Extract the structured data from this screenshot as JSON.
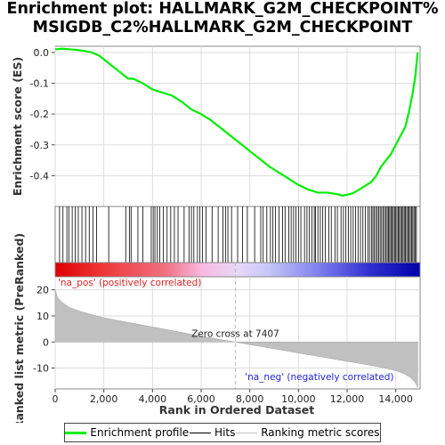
{
  "title_line1": "Enrichment plot: HALLMARK_G2M_CHECKPOINT%",
  "title_line2": "MSIGDB_C2%HALLMARK_G2M_CHECKPOINT",
  "colors": {
    "es_line": "#00ee00",
    "hit": "#000000",
    "metric_fill": "#c0c0c0",
    "pos_label": "#dd2222",
    "neg_label": "#2222dd",
    "grid": "#dddddd"
  },
  "legend": {
    "enrichment": "Enrichment profile",
    "hits": "Hits",
    "ranking": "Ranking metric scores"
  },
  "chart_data": [
    {
      "type": "line",
      "panel": "enrichment",
      "ylabel": "Enrichment score (ES)",
      "xlim": [
        0,
        15000
      ],
      "ylim": [
        -0.5,
        0.02
      ],
      "yticks": [
        "0.0",
        "-0.1",
        "-0.2",
        "-0.3",
        "-0.4"
      ],
      "ytick_values": [
        0.0,
        -0.1,
        -0.2,
        -0.3,
        -0.4
      ],
      "series": [
        {
          "name": "Enrichment profile",
          "x": [
            0,
            300,
            600,
            900,
            1200,
            1500,
            1800,
            2200,
            2600,
            3000,
            3200,
            3600,
            4000,
            4400,
            4800,
            5200,
            5600,
            6000,
            6400,
            6800,
            7200,
            7600,
            8000,
            8400,
            8800,
            9200,
            9600,
            10000,
            10400,
            10800,
            11200,
            11600,
            11800,
            12000,
            12200,
            12400,
            12600,
            12800,
            13000,
            13200,
            13400,
            13600,
            13800,
            14000,
            14200,
            14400,
            14550,
            14700,
            14800,
            14900
          ],
          "y": [
            0.01,
            0.012,
            0.01,
            0.008,
            0.005,
            0.0,
            -0.01,
            -0.035,
            -0.06,
            -0.085,
            -0.085,
            -0.1,
            -0.12,
            -0.13,
            -0.14,
            -0.16,
            -0.185,
            -0.2,
            -0.22,
            -0.245,
            -0.27,
            -0.295,
            -0.32,
            -0.345,
            -0.37,
            -0.39,
            -0.41,
            -0.43,
            -0.445,
            -0.455,
            -0.455,
            -0.46,
            -0.465,
            -0.462,
            -0.458,
            -0.45,
            -0.44,
            -0.43,
            -0.42,
            -0.4,
            -0.37,
            -0.35,
            -0.33,
            -0.3,
            -0.27,
            -0.24,
            -0.19,
            -0.13,
            -0.08,
            0.0
          ]
        }
      ]
    },
    {
      "type": "hits",
      "panel": "hits",
      "x": [
        180,
        320,
        480,
        560,
        700,
        820,
        950,
        1100,
        1250,
        1400,
        1550,
        1700,
        2200,
        2900,
        3050,
        3120,
        3400,
        3600,
        3950,
        4030,
        4100,
        4200,
        4300,
        4450,
        4600,
        4750,
        4900,
        5050,
        5300,
        5500,
        5600,
        5700,
        5850,
        5950,
        6050,
        6200,
        6450,
        6700,
        6900,
        7000,
        7100,
        7250,
        7500,
        7700,
        7900,
        8200,
        8450,
        8550,
        8700,
        8850,
        8950,
        9050,
        9200,
        9350,
        9450,
        9600,
        9700,
        9800,
        9900,
        10000,
        10100,
        10250,
        10350,
        10450,
        10550,
        10650,
        10700,
        10800,
        10900,
        11000,
        11100,
        11250,
        11350,
        11500,
        11600,
        11750,
        11850,
        11950,
        12050,
        12150,
        12250,
        12350,
        12450,
        12550,
        12650,
        12750,
        12850,
        12920,
        13000,
        13060,
        13120,
        13180,
        13240,
        13300,
        13360,
        13420,
        13480,
        13540,
        13600,
        13650,
        13700,
        13750,
        13800,
        13850,
        13900,
        13950,
        14000,
        14050,
        14100,
        14150,
        14200,
        14250,
        14300,
        14350,
        14400,
        14450,
        14500,
        14550,
        14600,
        14650,
        14700,
        14750,
        14800,
        14850
      ]
    },
    {
      "type": "area",
      "panel": "ranking",
      "ylabel": "Ranked list metric (PreRanked)",
      "xlabel": "Rank in Ordered Dataset",
      "xlim": [
        0,
        15000
      ],
      "ylim": [
        -18,
        25
      ],
      "xticks": [
        "0",
        "2,000",
        "4,000",
        "6,000",
        "8,000",
        "10,000",
        "12,000",
        "14,000"
      ],
      "xtick_values": [
        0,
        2000,
        4000,
        6000,
        8000,
        10000,
        12000,
        14000
      ],
      "yticks": [
        "20",
        "10",
        "0",
        "-10"
      ],
      "ytick_values": [
        20,
        10,
        0,
        -10
      ],
      "series": [
        {
          "name": "Ranking metric scores",
          "x": [
            0,
            100,
            300,
            600,
            1000,
            1500,
            2000,
            3000,
            4000,
            5000,
            6000,
            7000,
            7407,
            8000,
            9000,
            10000,
            11000,
            12000,
            13000,
            13500,
            14000,
            14300,
            14600,
            14800,
            14900
          ],
          "y": [
            20,
            17,
            15,
            13.2,
            11.8,
            10.5,
            9.3,
            7.5,
            5.8,
            4.0,
            2.2,
            0.6,
            0.0,
            -1.0,
            -2.6,
            -4.2,
            -5.8,
            -7.4,
            -9.0,
            -9.9,
            -11.0,
            -12.0,
            -13.5,
            -15.5,
            -17.5
          ]
        }
      ],
      "annotations": {
        "zero_cross": "Zero cross at 7407",
        "zero_cross_rank": 7407,
        "pos_label": "'na_pos' (positively correlated)",
        "neg_label": "'na_neg' (negatively correlated)"
      }
    }
  ]
}
